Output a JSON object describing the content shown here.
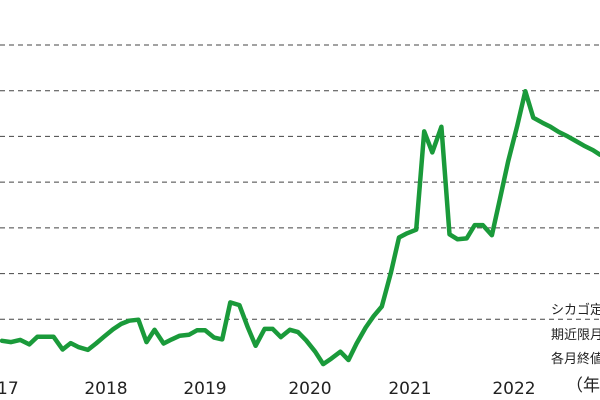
{
  "chart_data": {
    "type": "line",
    "title": "",
    "xlabel": "",
    "ylabel": "",
    "x_tick_labels": [
      "17",
      "2018",
      "2019",
      "2020",
      "2021",
      "2022",
      "（年"
    ],
    "xlim": [
      2016.93,
      2022.87
    ],
    "ylim": [
      0,
      7
    ],
    "y_gridlines": [
      1,
      2,
      3,
      4,
      5,
      6,
      7
    ],
    "y_tick_labels_visible": false,
    "grid": "horizontal dashed",
    "line_color": "#1a9a3a",
    "annotation": [
      "シカゴ定",
      "期近限月",
      "各月終値"
    ],
    "series": [
      {
        "x": [
          2016.95,
          2017.04,
          2017.13,
          2017.22,
          2017.3,
          2017.38,
          2017.46,
          2017.55,
          2017.63,
          2017.71,
          2017.8,
          2017.88,
          2017.96,
          2018.05,
          2018.13,
          2018.21,
          2018.3,
          2018.38,
          2018.46,
          2018.55,
          2018.63,
          2018.71,
          2018.8,
          2018.88,
          2018.96,
          2019.05,
          2019.13,
          2019.21,
          2019.3,
          2019.38,
          2019.46,
          2019.55,
          2019.63,
          2019.71,
          2019.8,
          2019.88,
          2019.96,
          2020.05,
          2020.13,
          2020.21,
          2020.3,
          2020.38,
          2020.46,
          2020.55,
          2020.63,
          2020.71,
          2020.8,
          2020.88,
          2020.96,
          2021.05,
          2021.13,
          2021.21,
          2021.3,
          2021.38,
          2021.46,
          2021.55,
          2021.63,
          2021.71,
          2021.8,
          2021.88,
          2021.96,
          2022.05,
          2022.13,
          2022.21,
          2022.3,
          2022.38,
          2022.46,
          2022.55,
          2022.63,
          2022.71,
          2022.8,
          2022.87
        ],
        "y": [
          0.53,
          0.5,
          0.55,
          0.45,
          0.62,
          0.62,
          0.62,
          0.34,
          0.48,
          0.39,
          0.33,
          0.47,
          0.62,
          0.78,
          0.9,
          0.97,
          0.99,
          0.5,
          0.77,
          0.47,
          0.56,
          0.64,
          0.66,
          0.76,
          0.76,
          0.6,
          0.56,
          1.37,
          1.31,
          0.84,
          0.42,
          0.79,
          0.79,
          0.61,
          0.77,
          0.72,
          0.54,
          0.29,
          0.02,
          0.14,
          0.29,
          0.11,
          0.47,
          0.82,
          1.07,
          1.28,
          2.02,
          2.79,
          2.88,
          2.96,
          5.11,
          4.65,
          5.21,
          2.86,
          2.75,
          2.77,
          3.06,
          3.06,
          2.84,
          3.64,
          4.45,
          5.23,
          5.99,
          5.41,
          5.3,
          5.21,
          5.1,
          5.0,
          4.9,
          4.8,
          4.7,
          4.6
        ]
      }
    ]
  }
}
